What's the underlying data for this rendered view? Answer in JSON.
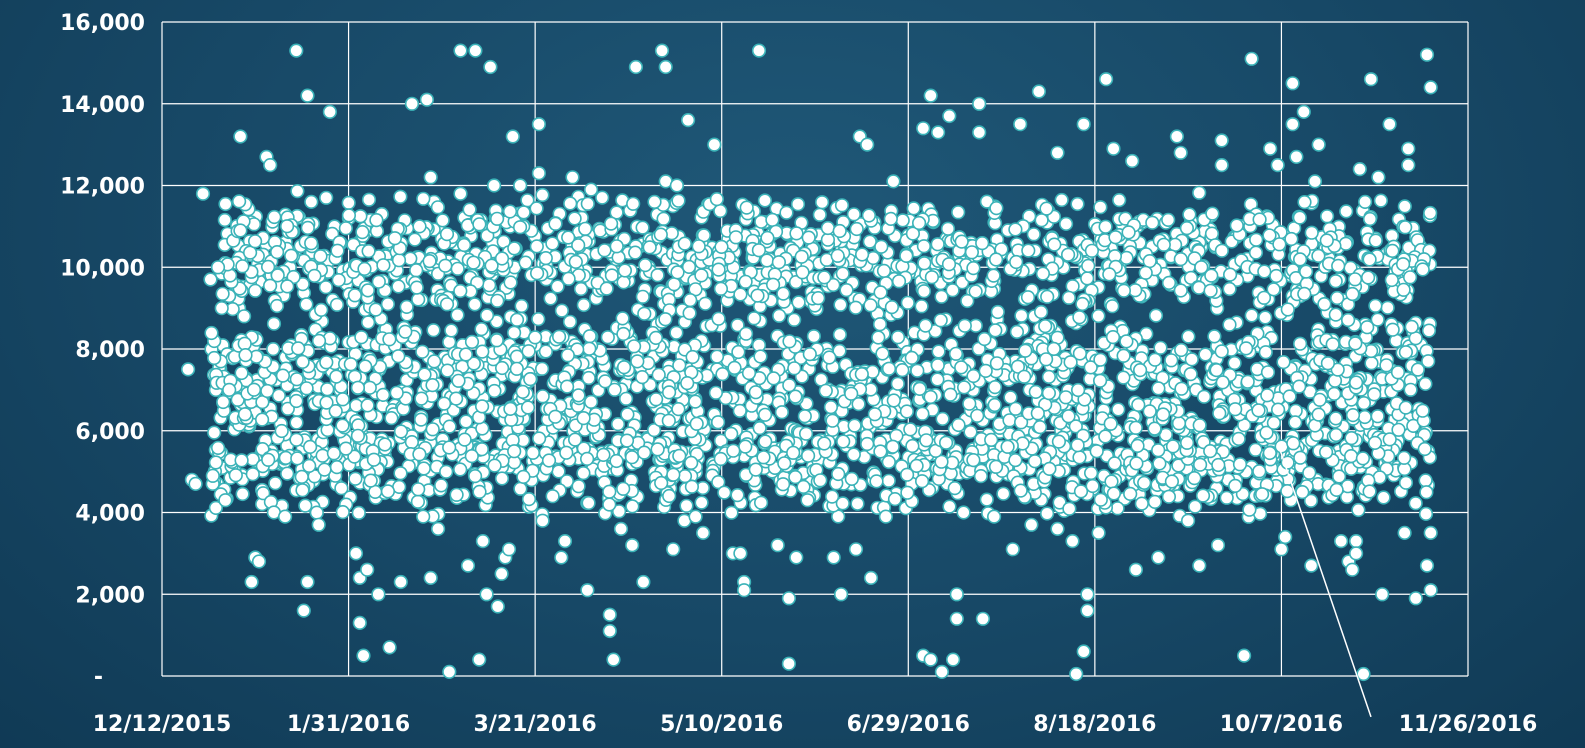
{
  "chart_data": {
    "type": "scatter",
    "title": "",
    "xlabel": "",
    "ylabel": "",
    "grid": true,
    "legend": "none",
    "marker_fill": "#ffffff",
    "marker_edge": "#3bb3b8",
    "background": "#174866",
    "xlim": [
      "2015-12-12",
      "2016-11-26"
    ],
    "ylim": [
      0,
      16000
    ],
    "x_ticks": [
      "12/12/2015",
      "1/31/2016",
      "3/21/2016",
      "5/10/2016",
      "6/29/2016",
      "8/18/2016",
      "10/7/2016",
      "11/26/2016"
    ],
    "y_ticks": [
      "-",
      "2,000",
      "4,000",
      "6,000",
      "8,000",
      "10,000",
      "12,000",
      "14,000",
      "16,000"
    ],
    "points": [
      [
        "2015-12-19",
        7500
      ],
      [
        "2015-12-20",
        4800
      ],
      [
        "2015-12-21",
        4700
      ],
      [
        "2015-12-23",
        11800
      ],
      [
        "2015-12-25",
        9700
      ],
      [
        "2015-12-27",
        10000
      ],
      [
        "2015-12-28",
        9000
      ],
      [
        "2015-12-29",
        4300
      ],
      [
        "2015-12-30",
        7000
      ],
      [
        "2016-01-02",
        10900
      ],
      [
        "2016-01-02",
        13200
      ],
      [
        "2016-01-03",
        8800
      ],
      [
        "2016-01-05",
        2300
      ],
      [
        "2016-01-06",
        2900
      ],
      [
        "2016-01-07",
        2800
      ],
      [
        "2016-01-09",
        12700
      ],
      [
        "2016-01-10",
        12500
      ],
      [
        "2016-01-11",
        4000
      ],
      [
        "2016-01-12",
        9800
      ],
      [
        "2016-01-14",
        3900
      ],
      [
        "2016-01-17",
        15300
      ],
      [
        "2016-01-19",
        1600
      ],
      [
        "2016-01-20",
        14200
      ],
      [
        "2016-01-20",
        2300
      ],
      [
        "2016-01-21",
        11600
      ],
      [
        "2016-01-23",
        3700
      ],
      [
        "2016-01-25",
        11700
      ],
      [
        "2016-01-26",
        13800
      ],
      [
        "2016-02-02",
        3000
      ],
      [
        "2016-02-03",
        1300
      ],
      [
        "2016-02-03",
        2400
      ],
      [
        "2016-02-04",
        500
      ],
      [
        "2016-02-05",
        2600
      ],
      [
        "2016-02-08",
        2000
      ],
      [
        "2016-02-11",
        700
      ],
      [
        "2016-02-14",
        2300
      ],
      [
        "2016-02-17",
        14000
      ],
      [
        "2016-02-19",
        11000
      ],
      [
        "2016-02-20",
        3900
      ],
      [
        "2016-02-21",
        14100
      ],
      [
        "2016-02-22",
        12200
      ],
      [
        "2016-02-22",
        2400
      ],
      [
        "2016-02-24",
        3600
      ],
      [
        "2016-02-27",
        100
      ],
      [
        "2016-03-01",
        15300
      ],
      [
        "2016-03-01",
        11800
      ],
      [
        "2016-03-03",
        2700
      ],
      [
        "2016-03-05",
        15300
      ],
      [
        "2016-03-06",
        400
      ],
      [
        "2016-03-07",
        3300
      ],
      [
        "2016-03-08",
        2000
      ],
      [
        "2016-03-09",
        14900
      ],
      [
        "2016-03-10",
        12000
      ],
      [
        "2016-03-11",
        1700
      ],
      [
        "2016-03-12",
        2500
      ],
      [
        "2016-03-13",
        2900
      ],
      [
        "2016-03-14",
        3100
      ],
      [
        "2016-03-15",
        13200
      ],
      [
        "2016-03-17",
        12000
      ],
      [
        "2016-03-22",
        13500
      ],
      [
        "2016-03-22",
        12300
      ],
      [
        "2016-03-23",
        3800
      ],
      [
        "2016-03-28",
        2900
      ],
      [
        "2016-03-29",
        3300
      ],
      [
        "2016-03-31",
        12200
      ],
      [
        "2016-04-04",
        2100
      ],
      [
        "2016-04-05",
        11900
      ],
      [
        "2016-04-10",
        1500
      ],
      [
        "2016-04-10",
        1100
      ],
      [
        "2016-04-11",
        400
      ],
      [
        "2016-04-13",
        3600
      ],
      [
        "2016-04-16",
        3200
      ],
      [
        "2016-04-17",
        14900
      ],
      [
        "2016-04-19",
        2300
      ],
      [
        "2016-04-22",
        11600
      ],
      [
        "2016-04-24",
        15300
      ],
      [
        "2016-04-25",
        14900
      ],
      [
        "2016-04-25",
        12100
      ],
      [
        "2016-04-27",
        3100
      ],
      [
        "2016-04-28",
        12000
      ],
      [
        "2016-04-30",
        3800
      ],
      [
        "2016-05-01",
        13600
      ],
      [
        "2016-05-03",
        3900
      ],
      [
        "2016-05-05",
        3500
      ],
      [
        "2016-05-08",
        13000
      ],
      [
        "2016-05-13",
        3000
      ],
      [
        "2016-05-15",
        3000
      ],
      [
        "2016-05-16",
        2300
      ],
      [
        "2016-05-16",
        2100
      ],
      [
        "2016-05-20",
        15300
      ],
      [
        "2016-05-25",
        3200
      ],
      [
        "2016-05-28",
        1900
      ],
      [
        "2016-05-28",
        300
      ],
      [
        "2016-05-30",
        2900
      ],
      [
        "2016-06-02",
        4300
      ],
      [
        "2016-06-09",
        2900
      ],
      [
        "2016-06-11",
        2000
      ],
      [
        "2016-06-15",
        3100
      ],
      [
        "2016-06-16",
        13200
      ],
      [
        "2016-06-18",
        13000
      ],
      [
        "2016-06-19",
        2400
      ],
      [
        "2016-06-23",
        3900
      ],
      [
        "2016-06-25",
        12100
      ],
      [
        "2016-07-03",
        13400
      ],
      [
        "2016-07-03",
        500
      ],
      [
        "2016-07-05",
        14200
      ],
      [
        "2016-07-05",
        400
      ],
      [
        "2016-07-07",
        13300
      ],
      [
        "2016-07-08",
        100
      ],
      [
        "2016-07-10",
        13700
      ],
      [
        "2016-07-11",
        400
      ],
      [
        "2016-07-12",
        2000
      ],
      [
        "2016-07-12",
        1400
      ],
      [
        "2016-07-18",
        14000
      ],
      [
        "2016-07-18",
        13300
      ],
      [
        "2016-07-19",
        1400
      ],
      [
        "2016-07-22",
        3900
      ],
      [
        "2016-07-27",
        3100
      ],
      [
        "2016-07-29",
        13500
      ],
      [
        "2016-08-01",
        3700
      ],
      [
        "2016-08-03",
        14300
      ],
      [
        "2016-08-08",
        12800
      ],
      [
        "2016-08-08",
        3600
      ],
      [
        "2016-08-12",
        3300
      ],
      [
        "2016-08-13",
        50
      ],
      [
        "2016-08-15",
        13500
      ],
      [
        "2016-08-15",
        600
      ],
      [
        "2016-08-16",
        2000
      ],
      [
        "2016-08-16",
        1600
      ],
      [
        "2016-08-19",
        3500
      ],
      [
        "2016-08-21",
        14600
      ],
      [
        "2016-08-23",
        12900
      ],
      [
        "2016-08-28",
        12600
      ],
      [
        "2016-08-29",
        2600
      ],
      [
        "2016-09-04",
        2900
      ],
      [
        "2016-09-09",
        13200
      ],
      [
        "2016-09-10",
        12800
      ],
      [
        "2016-09-12",
        3800
      ],
      [
        "2016-09-15",
        2700
      ],
      [
        "2016-09-20",
        3200
      ],
      [
        "2016-09-21",
        13100
      ],
      [
        "2016-09-21",
        12500
      ],
      [
        "2016-09-27",
        500
      ],
      [
        "2016-09-29",
        15100
      ],
      [
        "2016-10-04",
        12900
      ],
      [
        "2016-10-06",
        12500
      ],
      [
        "2016-10-07",
        3100
      ],
      [
        "2016-10-08",
        3400
      ],
      [
        "2016-10-10",
        14500
      ],
      [
        "2016-10-10",
        13500
      ],
      [
        "2016-10-11",
        12700
      ],
      [
        "2016-10-13",
        13800
      ],
      [
        "2016-10-15",
        2700
      ],
      [
        "2016-10-16",
        12100
      ],
      [
        "2016-10-17",
        13000
      ],
      [
        "2016-10-23",
        3300
      ],
      [
        "2016-10-25",
        2800
      ],
      [
        "2016-10-26",
        2600
      ],
      [
        "2016-10-27",
        3300
      ],
      [
        "2016-10-27",
        3000
      ],
      [
        "2016-10-28",
        12400
      ],
      [
        "2016-10-29",
        50
      ],
      [
        "2016-10-31",
        14600
      ],
      [
        "2016-11-02",
        12200
      ],
      [
        "2016-11-03",
        2000
      ],
      [
        "2016-11-05",
        13500
      ],
      [
        "2016-11-09",
        3500
      ],
      [
        "2016-11-10",
        12900
      ],
      [
        "2016-11-10",
        12500
      ],
      [
        "2016-11-12",
        1900
      ],
      [
        "2016-11-15",
        15200
      ],
      [
        "2016-11-15",
        2700
      ],
      [
        "2016-11-16",
        14400
      ],
      [
        "2016-11-16",
        2100
      ],
      [
        "2016-11-16",
        3500
      ]
    ],
    "dense_bands": [
      {
        "y_range": [
          3800,
          7000
        ],
        "x_range": [
          "2015-12-25",
          "2016-11-16"
        ],
        "count": 1300
      },
      {
        "y_range": [
          6000,
          9000
        ],
        "x_range": [
          "2015-12-25",
          "2016-11-16"
        ],
        "count": 1000
      },
      {
        "y_range": [
          8500,
          11900
        ],
        "x_range": [
          "2015-12-28",
          "2016-11-16"
        ],
        "count": 1200
      }
    ],
    "annotation_line": {
      "from": [
        "2016-10-06",
        5700
      ],
      "to": [
        "2016-10-31",
        -1000
      ]
    }
  }
}
